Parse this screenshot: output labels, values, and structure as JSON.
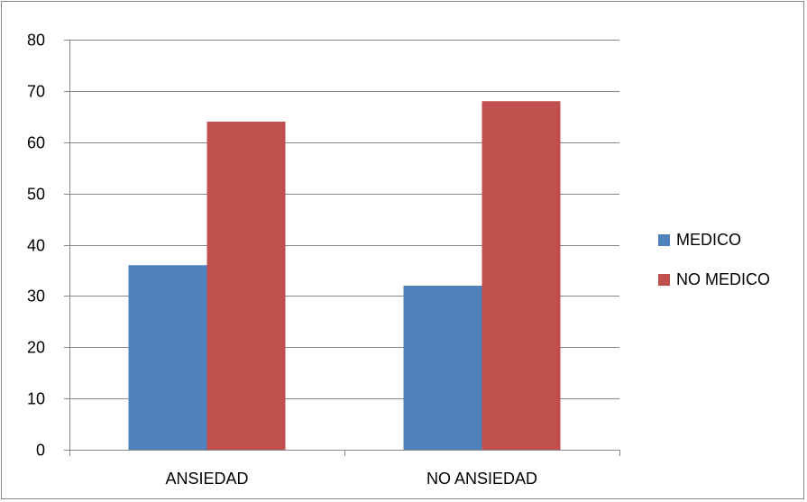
{
  "chart_data": {
    "type": "bar",
    "categories": [
      "ANSIEDAD",
      "NO ANSIEDAD"
    ],
    "series": [
      {
        "name": "MEDICO",
        "values": [
          36,
          32
        ],
        "color": "#4F81BD"
      },
      {
        "name": "NO MEDICO",
        "values": [
          64,
          68
        ],
        "color": "#C0504D"
      }
    ],
    "ylim": [
      0,
      80
    ],
    "yticks": [
      0,
      10,
      20,
      30,
      40,
      50,
      60,
      70,
      80
    ],
    "grid": true,
    "legend": "right"
  }
}
